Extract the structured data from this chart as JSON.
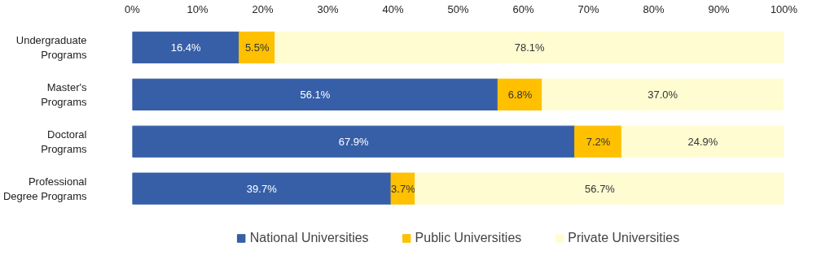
{
  "chart_data": {
    "type": "bar",
    "orientation": "horizontal",
    "stacked": true,
    "categories": [
      "Undergraduate Programs",
      "Master's Programs",
      "Doctoral Programs",
      "Professional Degree Programs"
    ],
    "series": [
      {
        "name": "National Universities",
        "color": "#365fa8",
        "values": [
          16.4,
          56.1,
          67.9,
          39.7
        ],
        "value_labels": [
          "16.4%",
          "56.1%",
          "67.9%",
          "39.7%"
        ]
      },
      {
        "name": "Public Universities",
        "color": "#ffc000",
        "values": [
          5.5,
          6.8,
          7.2,
          3.7
        ],
        "value_labels": [
          "5.5%",
          "6.8%",
          "7.2%",
          "3.7%"
        ]
      },
      {
        "name": "Private Universities",
        "color": "#fffcd2",
        "values": [
          78.1,
          37.0,
          24.9,
          56.7
        ],
        "value_labels": [
          "78.1%",
          "37.0%",
          "24.9%",
          "56.7%"
        ]
      }
    ],
    "xlim": [
      0,
      100
    ],
    "xticks": [
      {
        "value": 0,
        "label": "0%"
      },
      {
        "value": 10,
        "label": "10%"
      },
      {
        "value": 20,
        "label": "20%"
      },
      {
        "value": 30,
        "label": "30%"
      },
      {
        "value": 40,
        "label": "40%"
      },
      {
        "value": 50,
        "label": "50%"
      },
      {
        "value": 60,
        "label": "60%"
      },
      {
        "value": 70,
        "label": "70%"
      },
      {
        "value": 80,
        "label": "80%"
      },
      {
        "value": 90,
        "label": "90%"
      },
      {
        "value": 100,
        "label": "100%"
      }
    ],
    "legend": "bottom",
    "grid": false
  }
}
